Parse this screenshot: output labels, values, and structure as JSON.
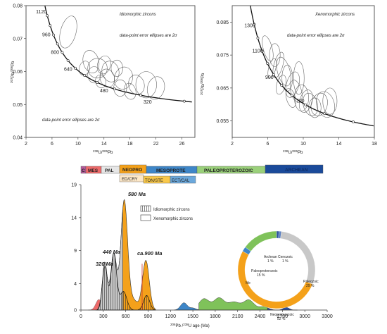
{
  "chart_data": [
    {
      "type": "scatter",
      "panel": "top-left",
      "title": "Idiomorphic zircons",
      "annotation_top": "data-point error ellipses are 2σ",
      "annotation_bottom": "data-point error ellipses are 2σ",
      "xlabel_sup": "238",
      "xlabel_main": "U/",
      "xlabel_sup2": "206",
      "xlabel_end": "Pb",
      "ylabel": "207Pb/206Pb",
      "xlim": [
        2,
        28
      ],
      "ylim": [
        0.04,
        0.08
      ],
      "xticks": [
        "2",
        "6",
        "10",
        "14",
        "18",
        "22",
        "26"
      ],
      "yticks": [
        "0.04",
        "0.05",
        "0.06",
        "0.07",
        "0.08"
      ],
      "concordia_ages": [
        "1120",
        "960",
        "800",
        "640",
        "480",
        "320"
      ],
      "ellipses": [
        {
          "x": 12.0,
          "y": 0.063,
          "rx": 1.2,
          "ry": 0.0035
        },
        {
          "x": 13.0,
          "y": 0.061,
          "rx": 1.5,
          "ry": 0.003
        },
        {
          "x": 14.0,
          "y": 0.062,
          "rx": 1.0,
          "ry": 0.0028
        },
        {
          "x": 15.0,
          "y": 0.06,
          "rx": 1.3,
          "ry": 0.0032
        },
        {
          "x": 16.0,
          "y": 0.061,
          "rx": 0.9,
          "ry": 0.0025
        },
        {
          "x": 17.0,
          "y": 0.058,
          "rx": 1.4,
          "ry": 0.0034
        },
        {
          "x": 14.5,
          "y": 0.058,
          "rx": 1.1,
          "ry": 0.0028
        },
        {
          "x": 12.5,
          "y": 0.059,
          "rx": 1.0,
          "ry": 0.0025
        },
        {
          "x": 11.0,
          "y": 0.061,
          "rx": 0.8,
          "ry": 0.0022
        },
        {
          "x": 19.0,
          "y": 0.056,
          "rx": 1.2,
          "ry": 0.003
        },
        {
          "x": 20.5,
          "y": 0.056,
          "rx": 1.6,
          "ry": 0.004
        },
        {
          "x": 22.0,
          "y": 0.055,
          "rx": 1.3,
          "ry": 0.0035
        },
        {
          "x": 18.0,
          "y": 0.054,
          "rx": 0.9,
          "ry": 0.0025
        },
        {
          "x": 16.5,
          "y": 0.055,
          "rx": 1.0,
          "ry": 0.0025
        },
        {
          "x": 8.5,
          "y": 0.072,
          "rx": 1.2,
          "ry": 0.005
        },
        {
          "x": 13.5,
          "y": 0.057,
          "rx": 0.8,
          "ry": 0.002
        }
      ]
    },
    {
      "type": "scatter",
      "panel": "top-right",
      "title": "Xenomorphic zircons",
      "annotation_top": "data-point error ellipses are 2σ",
      "xlabel_sup": "238",
      "xlabel_main": "U/",
      "xlabel_sup2": "206",
      "xlabel_end": "Pb",
      "ylabel": "207Pb/206Pb",
      "xlim": [
        2,
        18
      ],
      "ylim": [
        0.05,
        0.09
      ],
      "xticks": [
        "2",
        "6",
        "10",
        "14",
        "18"
      ],
      "yticks": [
        "0.055",
        "0.065",
        "0.075",
        "0.085"
      ],
      "concordia_ages": [
        "1300",
        "1100",
        "900",
        "700"
      ],
      "ellipses": [
        {
          "x": 6.0,
          "y": 0.077,
          "rx": 0.5,
          "ry": 0.004
        },
        {
          "x": 6.8,
          "y": 0.075,
          "rx": 0.6,
          "ry": 0.0035
        },
        {
          "x": 7.2,
          "y": 0.072,
          "rx": 0.5,
          "ry": 0.004
        },
        {
          "x": 7.8,
          "y": 0.07,
          "rx": 0.7,
          "ry": 0.0045
        },
        {
          "x": 8.2,
          "y": 0.068,
          "rx": 0.6,
          "ry": 0.004
        },
        {
          "x": 8.8,
          "y": 0.066,
          "rx": 0.7,
          "ry": 0.004
        },
        {
          "x": 9.2,
          "y": 0.064,
          "rx": 0.6,
          "ry": 0.0035
        },
        {
          "x": 9.8,
          "y": 0.062,
          "rx": 0.8,
          "ry": 0.004
        },
        {
          "x": 10.3,
          "y": 0.061,
          "rx": 0.7,
          "ry": 0.0035
        },
        {
          "x": 10.8,
          "y": 0.06,
          "rx": 0.8,
          "ry": 0.0035
        },
        {
          "x": 11.3,
          "y": 0.059,
          "rx": 0.7,
          "ry": 0.003
        },
        {
          "x": 11.8,
          "y": 0.06,
          "rx": 0.9,
          "ry": 0.0035
        },
        {
          "x": 12.5,
          "y": 0.06,
          "rx": 1.0,
          "ry": 0.004
        },
        {
          "x": 13.0,
          "y": 0.061,
          "rx": 0.8,
          "ry": 0.004
        },
        {
          "x": 7.5,
          "y": 0.066,
          "rx": 0.5,
          "ry": 0.003
        },
        {
          "x": 8.6,
          "y": 0.062,
          "rx": 0.5,
          "ry": 0.003
        },
        {
          "x": 9.5,
          "y": 0.068,
          "rx": 0.6,
          "ry": 0.005
        },
        {
          "x": 6.5,
          "y": 0.071,
          "rx": 0.4,
          "ry": 0.003
        }
      ]
    },
    {
      "type": "area",
      "panel": "bottom",
      "xlabel_sup": "206",
      "xlabel_main": "Pb /",
      "xlabel_sup2": "238",
      "xlabel_end": "U  age  (Ma)",
      "xlim": [
        0,
        3300
      ],
      "ylim": [
        0,
        19
      ],
      "xticks": [
        "0",
        "300",
        "600",
        "900",
        "1200",
        "1500",
        "1800",
        "2100",
        "2400",
        "2700",
        "3000",
        "3300"
      ],
      "yticks": [
        "0",
        "4",
        "9",
        "14",
        "19"
      ],
      "legend": [
        "Idiomorphic zircons",
        "Xenomorphic zircons"
      ],
      "peak_labels": [
        "320 Ma",
        "440 Ma",
        "580 Ma",
        "ca.900 Ma"
      ],
      "timescale": {
        "top_row": [
          "C",
          "MES",
          "PAL",
          "NEOPRO",
          "MESOPROTE",
          "PALEOPROTEROZOIC",
          "ARCHEAN"
        ],
        "bottom_row": [
          "ED/CRY",
          "TON/STE",
          "ECT/CAL"
        ]
      }
    },
    {
      "type": "pie",
      "panel": "donut",
      "slices": [
        {
          "label": "Archean",
          "pct": "1 %",
          "value": 1,
          "color": "#2b4fa0"
        },
        {
          "label": "Cenozoic",
          "pct": "1 %",
          "value": 1,
          "color": "#5a7fc0"
        },
        {
          "label": "Paleozoic",
          "pct": "29 %",
          "value": 29,
          "color": "#c8c8c8"
        },
        {
          "label": "Neoproterozoic",
          "pct": "52 %",
          "value": 52,
          "color": "#f4a11a"
        },
        {
          "label": "Mesoproterozoic",
          "pct": "2 %",
          "value": 2,
          "color": "#3e86c8"
        },
        {
          "label": "Paleoproterozoic",
          "pct": "15 %",
          "value": 15,
          "color": "#7fc25a"
        }
      ],
      "mes_label": "Me"
    }
  ]
}
